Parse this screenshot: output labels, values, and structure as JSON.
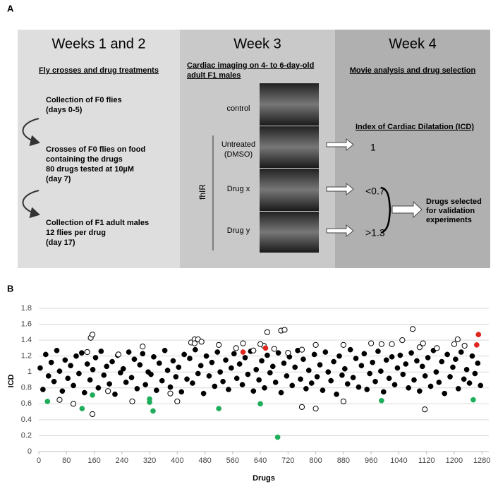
{
  "panel_a": {
    "label": "A",
    "week12": {
      "title": "Weeks 1 and 2",
      "subtitle": "Fly crosses and drug treatments",
      "step1": [
        "Collection of F0 flies",
        "(days 0-5)"
      ],
      "step2": [
        "Crosses of F0 flies on food",
        "containing the drugs",
        "80 drugs tested at 10µM",
        "(day 7)"
      ],
      "step3": [
        "Collection of F1 adult males",
        "12 flies per drug",
        " (day 17)"
      ]
    },
    "week3": {
      "title": "Week 3",
      "subtitle": [
        "Cardiac imaging on 4- to 6-day-old",
        "adult F1 males"
      ],
      "rows": [
        "control",
        [
          "Untreated",
          "(DMSO)"
        ],
        "Drug x",
        "Drug y"
      ],
      "group": "fhIR"
    },
    "week4": {
      "title": "Week 4",
      "subtitle": "Movie analysis and drug selection",
      "index": "Index of Cardiac Dilatation (ICD)",
      "values": [
        "1",
        "<0.7",
        ">1.3"
      ],
      "selected": [
        "Drugs selected",
        "for validation",
        "experiments"
      ]
    }
  },
  "panel_b": {
    "label": "B"
  },
  "chart_data": {
    "type": "scatter",
    "xlabel": "Drugs",
    "ylabel": "ICD",
    "xlim": [
      0,
      1300
    ],
    "xticks": [
      0,
      80,
      160,
      240,
      320,
      400,
      480,
      560,
      640,
      720,
      800,
      880,
      960,
      1040,
      1120,
      1200,
      1280
    ],
    "ylim": [
      0,
      1.8
    ],
    "yticks": [
      0,
      0.2,
      0.4,
      0.6,
      0.8,
      1,
      1.2,
      1.4,
      1.6,
      1.8
    ],
    "grid": true,
    "series": [
      {
        "color": "#000000",
        "marker": "filled",
        "x": [
          4,
          12,
          20,
          28,
          36,
          44,
          52,
          60,
          68,
          76,
          84,
          92,
          100,
          108,
          116,
          124,
          132,
          140,
          148,
          156,
          164,
          172,
          180,
          188,
          196,
          204,
          212,
          220,
          228,
          236,
          244,
          252,
          260,
          268,
          276,
          284,
          292,
          300,
          308,
          316,
          324,
          332,
          340,
          348,
          356,
          364,
          372,
          380,
          388,
          396,
          404,
          412,
          420,
          428,
          436,
          444,
          452,
          460,
          468,
          476,
          484,
          492,
          500,
          508,
          516,
          524,
          532,
          540,
          548,
          556,
          564,
          572,
          580,
          588,
          596,
          604,
          612,
          620,
          628,
          636,
          644,
          652,
          660,
          668,
          676,
          684,
          692,
          700,
          708,
          716,
          724,
          732,
          740,
          748,
          756,
          764,
          772,
          780,
          788,
          796,
          804,
          812,
          820,
          828,
          836,
          844,
          852,
          860,
          868,
          876,
          884,
          892,
          900,
          908,
          916,
          924,
          932,
          940,
          948,
          956,
          964,
          972,
          980,
          988,
          996,
          1004,
          1012,
          1020,
          1028,
          1036,
          1044,
          1052,
          1060,
          1068,
          1076,
          1084,
          1092,
          1100,
          1108,
          1116,
          1124,
          1132,
          1140,
          1148,
          1156,
          1164,
          1172,
          1180,
          1188,
          1196,
          1204,
          1212,
          1220,
          1228,
          1236,
          1244,
          1252,
          1260,
          1268,
          1276
        ],
        "values": [
          1.05,
          0.78,
          1.22,
          0.95,
          1.12,
          0.88,
          1.27,
          1.01,
          0.76,
          1.15,
          0.92,
          1.08,
          0.83,
          1.2,
          0.98,
          1.24,
          0.74,
          1.1,
          0.9,
          1.03,
          1.18,
          0.8,
          1.26,
          0.96,
          1.07,
          0.85,
          1.13,
          0.72,
          1.21,
          0.99,
          1.04,
          0.87,
          1.25,
          0.93,
          1.16,
          0.79,
          1.09,
          1.23,
          0.84,
          1.0,
          0.97,
          1.19,
          0.77,
          1.11,
          0.89,
          1.27,
          1.02,
          0.81,
          1.14,
          0.94,
          1.06,
          0.75,
          1.22,
          0.91,
          1.17,
          0.86,
          1.28,
          0.98,
          1.08,
          0.73,
          1.2,
          0.95,
          1.12,
          0.82,
          1.25,
          1.0,
          0.88,
          1.15,
          0.78,
          1.05,
          1.23,
          0.92,
          1.1,
          0.84,
          1.18,
          0.97,
          1.26,
          0.76,
          1.03,
          0.9,
          1.14,
          0.8,
          1.21,
          0.99,
          1.07,
          0.87,
          1.24,
          0.74,
          1.11,
          0.95,
          1.19,
          0.83,
          1.06,
          1.27,
          0.91,
          1.16,
          0.79,
          1.02,
          0.86,
          1.22,
          0.94,
          1.09,
          0.77,
          1.25,
          1.0,
          0.89,
          1.13,
          0.72,
          1.2,
          0.96,
          1.04,
          0.85,
          1.28,
          0.93,
          1.17,
          0.81,
          1.08,
          1.23,
          0.78,
          0.98,
          1.12,
          0.88,
          1.26,
          1.01,
          0.75,
          1.15,
          0.92,
          1.19,
          0.84,
          1.05,
          1.21,
          0.97,
          1.1,
          0.8,
          1.24,
          0.9,
          1.14,
          0.76,
          1.07,
          0.95,
          1.18,
          0.82,
          1.27,
          1.0,
          0.87,
          1.13,
          0.73,
          1.22,
          0.94,
          1.06,
          1.16,
          0.79,
          1.25,
          0.91,
          1.03,
          0.86,
          1.2,
          0.98,
          1.11,
          0.83
        ]
      },
      {
        "color": "#000000",
        "marker": "open",
        "x": [
          150,
          155,
          155,
          300,
          440,
          450,
          460,
          470,
          590,
          620,
          650,
          660,
          680,
          700,
          710,
          720,
          760,
          800,
          800,
          880,
          960,
          990,
          1020,
          1080,
          1100,
          1110,
          1115,
          1200,
          1210,
          400,
          270,
          200,
          380,
          60,
          100,
          520,
          640,
          880,
          1050,
          1150,
          1230,
          570,
          760,
          140,
          450,
          230
        ],
        "values": [
          1.43,
          1.47,
          0.47,
          1.32,
          1.37,
          1.41,
          1.41,
          1.38,
          1.36,
          1.27,
          1.33,
          1.5,
          1.29,
          1.52,
          1.53,
          1.24,
          0.56,
          1.34,
          0.54,
          0.63,
          1.36,
          1.35,
          1.35,
          1.54,
          1.31,
          1.36,
          0.53,
          1.35,
          1.41,
          0.63,
          0.63,
          0.76,
          0.73,
          0.65,
          0.6,
          1.34,
          1.35,
          1.34,
          1.4,
          1.3,
          1.33,
          1.3,
          1.28,
          1.25,
          1.36,
          1.22
        ]
      },
      {
        "color": "#e0261f",
        "marker": "filled",
        "x": [
          590,
          655,
          1265,
          1270
        ],
        "values": [
          1.25,
          1.3,
          1.34,
          1.47
        ]
      },
      {
        "color": "#1fad5b",
        "marker": "filled",
        "x": [
          25,
          125,
          155,
          320,
          320,
          330,
          520,
          640,
          690,
          990,
          1255
        ],
        "values": [
          0.63,
          0.54,
          0.71,
          0.66,
          0.62,
          0.51,
          0.54,
          0.6,
          0.18,
          0.64,
          0.65
        ]
      }
    ]
  }
}
